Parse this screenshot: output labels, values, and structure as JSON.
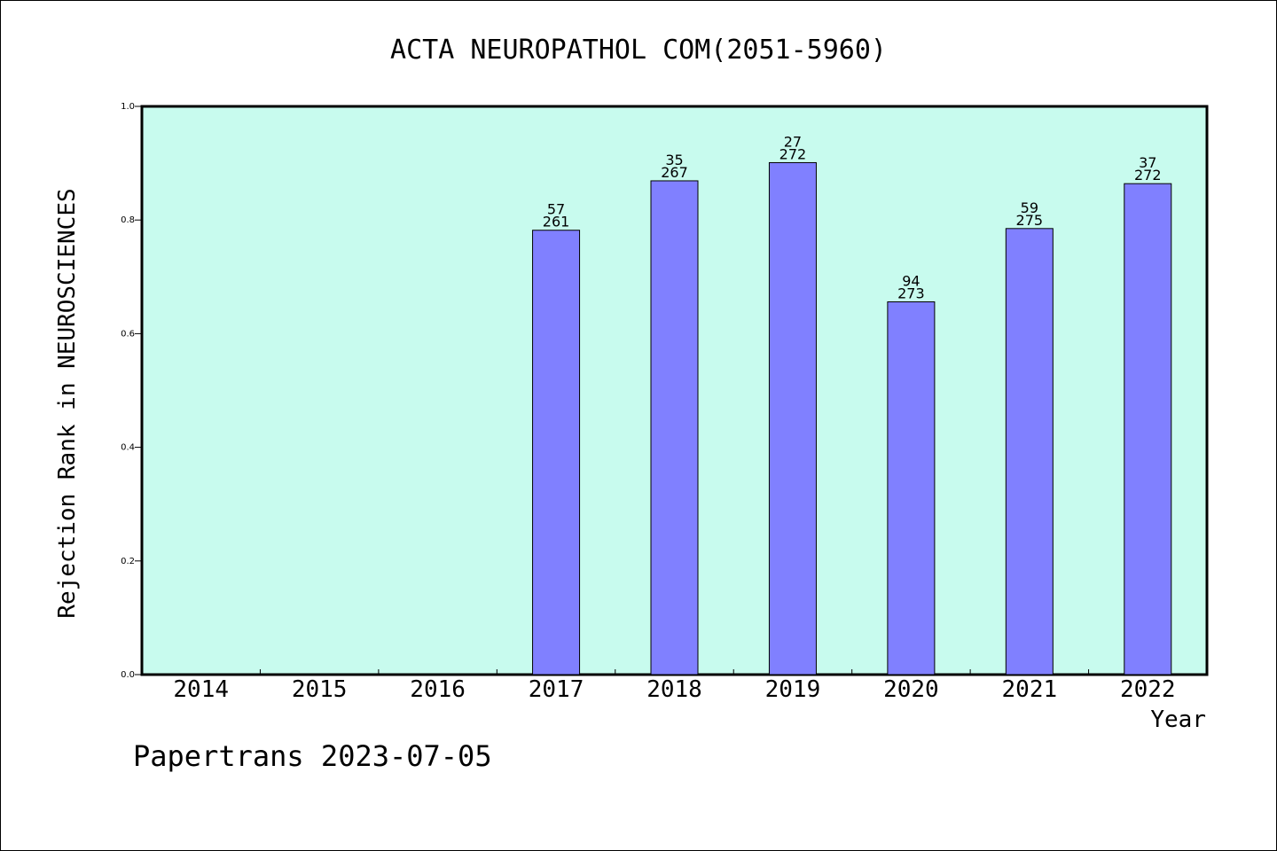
{
  "chart_data": {
    "type": "bar",
    "title": "ACTA NEUROPATHOL COM(2051-5960)",
    "xlabel": "Year",
    "ylabel": "Rejection Rank in NEUROSCIENCES",
    "ylim": [
      0,
      1.0
    ],
    "yticks": [
      "0.0",
      "0.2",
      "0.4",
      "0.6",
      "0.8",
      "1.0"
    ],
    "categories": [
      "2014",
      "2015",
      "2016",
      "2017",
      "2018",
      "2019",
      "2020",
      "2021",
      "2022"
    ],
    "values": [
      null,
      null,
      null,
      0.782,
      0.869,
      0.901,
      0.656,
      0.785,
      0.864
    ],
    "rank_labels": [
      "",
      "",
      "",
      "57",
      "35",
      "27",
      "94",
      "59",
      "37"
    ],
    "total_labels": [
      "",
      "",
      "",
      "261",
      "267",
      "272",
      "273",
      "275",
      "272"
    ],
    "grid": false,
    "colors": {
      "plot_bg": "#c8fbee",
      "bar_fill": "#8080ff",
      "axis": "#000000"
    }
  },
  "footer": {
    "text": "Papertrans 2023-07-05"
  }
}
